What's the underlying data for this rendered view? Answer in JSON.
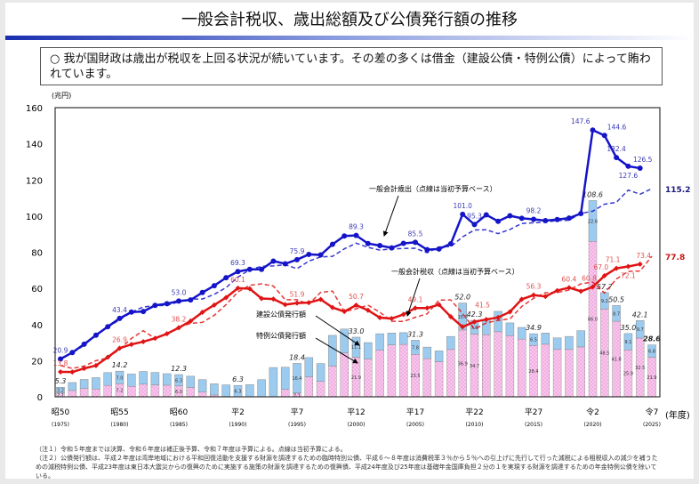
{
  "title": "一般会計税収、歳出総額及び公債発行額の推移",
  "summary": "○ 我が国財政は歳出が税収を上回る状況が続いています。その差の多くは借金（建設公債・特例公債）によって賄われています。",
  "notes": [
    "（注１）令和５年度までは決算、令和６年度は補正後予算、令和７年度は予算による。点線は当初予算による。",
    "（注２）公債発行額は、平成２年度は湾岸地域における平和回復活動を支援する財源を調達するための臨時特別公債、平成６～８年度は消費税率３％から５％への引上げに先行して行った減税による租税収入の減少を補うための減税特例公債、平成23年度は東日本大震災からの復興のために実施する施策の財源を調達するための復興債、平成24年度及び25年度は基礎年金国庫負担２分の１を実現する財源を調達するための年金特例公債を除いている。"
  ],
  "chart_data": {
    "type": "bar+line",
    "ylabel": "(兆円)",
    "xlabel": "(年度)",
    "ylim": [
      0,
      160
    ],
    "yticks": [
      0,
      20,
      40,
      60,
      80,
      100,
      120,
      140,
      160
    ],
    "xticks": [
      {
        "year": 1975,
        "era": "昭50",
        "ad": "(1975)"
      },
      {
        "year": 1980,
        "era": "昭55",
        "ad": "(1980)"
      },
      {
        "year": 1985,
        "era": "昭60",
        "ad": "(1985)"
      },
      {
        "year": 1990,
        "era": "平2",
        "ad": "(1990)"
      },
      {
        "year": 1995,
        "era": "平7",
        "ad": "(1995)"
      },
      {
        "year": 2000,
        "era": "平12",
        "ad": "(2000)"
      },
      {
        "year": 2005,
        "era": "平17",
        "ad": "(2005)"
      },
      {
        "year": 2010,
        "era": "平22",
        "ad": "(2010)"
      },
      {
        "year": 2015,
        "era": "平27",
        "ad": "(2015)"
      },
      {
        "year": 2020,
        "era": "令2",
        "ad": "(2020)"
      },
      {
        "year": 2025,
        "era": "令7",
        "ad": "(2025)"
      }
    ],
    "x_start": 1975,
    "colors": {
      "expenditure": "#1414c8",
      "tax": "#e01414",
      "construction": "#9ccbf0",
      "special": "#f8c8ec"
    },
    "series": [
      {
        "name": "一般会計歳出（点線は当初予算ベース）",
        "key": "expenditure",
        "values": [
          20.9,
          24.5,
          29.1,
          34.1,
          38.8,
          43.4,
          46.9,
          47.2,
          50.6,
          51.5,
          53.0,
          53.6,
          57.7,
          61.5,
          65.9,
          69.3,
          70.5,
          70.5,
          75.1,
          73.6,
          75.9,
          78.8,
          78.5,
          84.4,
          89.0,
          89.3,
          84.8,
          83.7,
          82.4,
          84.9,
          85.5,
          81.4,
          81.8,
          84.7,
          101.0,
          95.3,
          100.7,
          97.1,
          100.2,
          98.8,
          98.2,
          97.5,
          98.1,
          98.9,
          101.4,
          147.6,
          144.6,
          132.4,
          127.6,
          126.5
        ],
        "initial_budget": [
          21.3,
          24.3,
          28.5,
          34.3,
          38.6,
          42.6,
          46.8,
          49.7,
          50.4,
          50.6,
          52.5,
          54.1,
          54.1,
          56.7,
          60.4,
          66.2,
          70.3,
          72.2,
          72.4,
          73.1,
          70.9,
          75.1,
          77.4,
          77.7,
          81.9,
          85.0,
          82.7,
          81.2,
          81.8,
          82.1,
          82.2,
          79.7,
          82.9,
          83.1,
          88.5,
          92.3,
          92.4,
          90.3,
          92.6,
          95.9,
          96.3,
          96.7,
          97.5,
          97.7,
          101.5,
          102.7,
          106.6,
          107.6,
          114.4,
          112.1,
          115.2
        ],
        "labels": {
          "1975": "20.9",
          "1980": "43.4",
          "1985": "53.0",
          "1990": "69.3",
          "1995": "75.9",
          "2000": "89.3",
          "2005": "85.5",
          "2009": "101.0",
          "2010": "95.3",
          "2015": "98.2",
          "2020": "147.6",
          "2021": "144.6",
          "2022": "132.4",
          "2023": "127.6",
          "2024": "126.5"
        },
        "end_label": "115.2"
      },
      {
        "name": "一般会計税収（点線は当初予算ベース）",
        "key": "tax",
        "values": [
          13.8,
          13.7,
          15.7,
          17.3,
          21.9,
          26.9,
          29.0,
          30.5,
          32.4,
          34.9,
          38.2,
          41.9,
          46.8,
          50.8,
          54.9,
          60.1,
          59.8,
          54.4,
          54.1,
          51.0,
          51.9,
          52.1,
          53.9,
          49.4,
          47.2,
          50.7,
          47.9,
          43.8,
          43.3,
          45.6,
          49.1,
          49.1,
          51.0,
          44.3,
          38.7,
          41.5,
          42.8,
          43.9,
          47.0,
          54.0,
          56.3,
          55.5,
          58.8,
          60.4,
          58.4,
          60.8,
          67.0,
          71.1,
          72.1,
          73.4
        ],
        "initial_budget": [
          17.3,
          15.7,
          17.0,
          20.0,
          21.5,
          26.4,
          32.3,
          36.6,
          32.3,
          34.6,
          38.6,
          40.6,
          41.2,
          45.1,
          51.0,
          58.0,
          61.7,
          62.5,
          61.3,
          53.7,
          53.7,
          51.3,
          57.8,
          58.5,
          47.1,
          48.7,
          50.7,
          46.8,
          41.8,
          41.7,
          44.0,
          45.9,
          53.5,
          53.6,
          46.1,
          37.4,
          40.9,
          42.3,
          43.1,
          50.0,
          54.5,
          57.6,
          57.7,
          59.1,
          62.5,
          63.5,
          57.4,
          65.2,
          69.4,
          69.6,
          77.8
        ],
        "labels": {
          "1975": "13.8",
          "1980": "26.9",
          "1985": "38.2",
          "1990": "60.1",
          "1995": "51.9",
          "2000": "50.7",
          "2005": "49.1",
          "2010": "41.5",
          "2015": "56.3",
          "2018": "60.4",
          "2020": "60.8",
          "2021": "67.0",
          "2022": "71.1",
          "2023": "72.1",
          "2024": "73.4"
        },
        "end_label": "77.8"
      },
      {
        "name": "建設公債発行額",
        "key": "construction",
        "values": [
          3.2,
          4.4,
          5.0,
          6.3,
          7.1,
          7.0,
          6.8,
          7.0,
          6.9,
          6.4,
          6.3,
          6.2,
          6.9,
          6.2,
          6.4,
          6.3,
          6.7,
          9.5,
          16.2,
          12.3,
          16.4,
          10.7,
          9.9,
          17.0,
          13.2,
          11.1,
          9.1,
          9.1,
          6.6,
          6.5,
          7.8,
          6.4,
          6.0,
          7.2,
          15.0,
          7.6,
          8.4,
          11.3,
          7.1,
          6.5,
          6.5,
          6.2,
          6.4,
          7.2,
          9.0,
          22.6,
          9.2,
          8.7,
          9.1,
          9.7,
          6.8
        ]
      },
      {
        "name": "特例公債発行額",
        "key": "special",
        "values": [
          2.1,
          3.5,
          4.6,
          4.3,
          6.3,
          7.2,
          5.8,
          7.0,
          6.6,
          6.4,
          6.0,
          5.2,
          2.6,
          1.0,
          0.2,
          0,
          0,
          0,
          0,
          4.1,
          2.1,
          11.0,
          8.5,
          17.0,
          24.3,
          21.9,
          20.9,
          25.8,
          28.7,
          29.0,
          23.5,
          21.1,
          19.4,
          26.2,
          36.9,
          34.7,
          34.4,
          36.0,
          33.8,
          31.9,
          28.4,
          29.1,
          26.2,
          26.2,
          27.6,
          86.0,
          48.5,
          41.8,
          25.9,
          32.5,
          21.9
        ]
      }
    ],
    "bond_total_labels": {
      "1975": "5.3",
      "1980": "14.2",
      "1985": "12.3",
      "1990": "6.3",
      "1995": "18.4",
      "2000": "33.0",
      "2005": "31.3",
      "2009": "52.0",
      "2010": "42.3",
      "2015": "34.9",
      "2020": "108.6",
      "2021": "57.7",
      "2022": "50.5",
      "2023": "35.0",
      "2024": "42.1",
      "2025": "28.6"
    },
    "bond_inner_labels": [
      1975,
      1980,
      1985,
      1990,
      1995,
      2000,
      2005,
      2009,
      2010,
      2015,
      2020,
      2021,
      2022,
      2023,
      2024,
      2025
    ]
  }
}
